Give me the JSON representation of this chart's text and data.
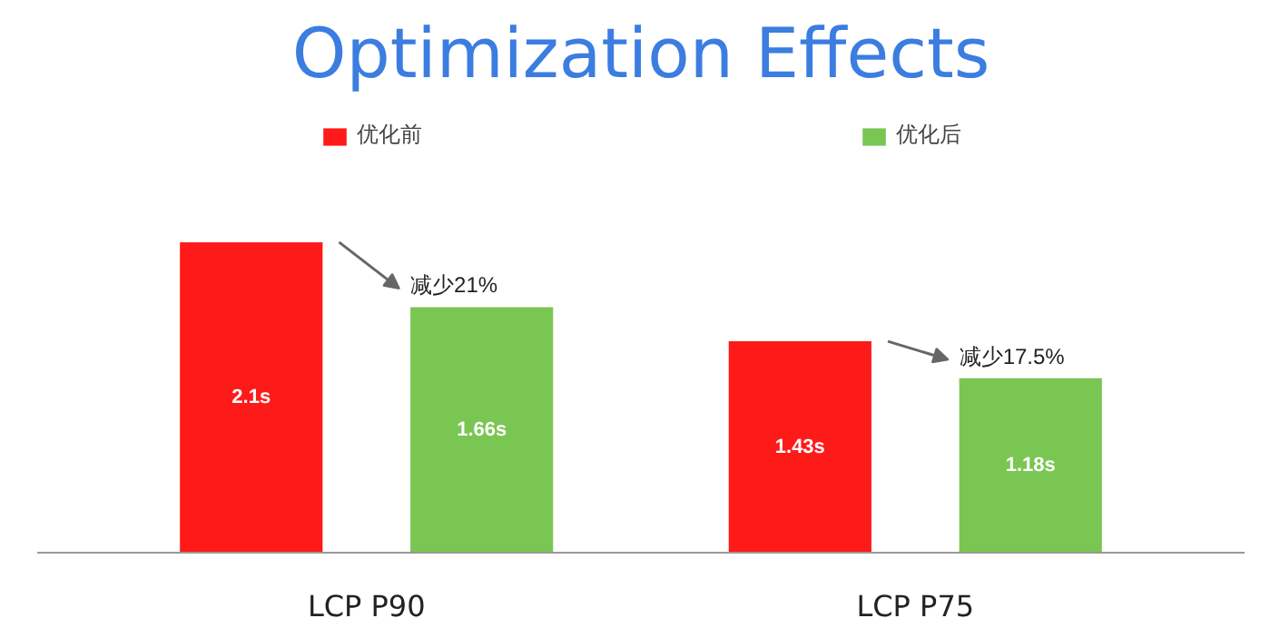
{
  "chart_data": {
    "type": "bar",
    "title": "Optimization Effects",
    "categories": [
      "LCP P90",
      "LCP P75"
    ],
    "series": [
      {
        "name": "优化前",
        "color": "#ff1a1a",
        "values": [
          2.1,
          1.43
        ],
        "value_labels": [
          "2.1s",
          "1.43s"
        ]
      },
      {
        "name": "优化后",
        "color": "#7ac653",
        "values": [
          1.66,
          1.18
        ],
        "value_labels": [
          "1.66s",
          "1.18s"
        ]
      }
    ],
    "annotations": [
      "减少21%",
      "减少17.5%"
    ],
    "legend": "top"
  }
}
